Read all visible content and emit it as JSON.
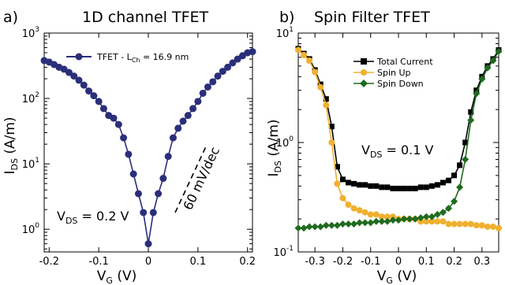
{
  "colors": {
    "tfet_1d": "#2b2f7a",
    "total": "#000000",
    "spin_up": "#f0b030",
    "spin_down": "#1f6b1f"
  },
  "chart_data": [
    {
      "type": "line",
      "panel_label": "a)",
      "title": "1D channel TFET",
      "xlabel_main": "V",
      "xlabel_sub": "G",
      "xlabel_rest": " (V)",
      "ylabel_main": "I",
      "ylabel_sub": "DS",
      "ylabel_rest": " (A/m)",
      "yscale": "log",
      "xlim": [
        -0.21,
        0.21
      ],
      "ylim": [
        0.45,
        1000
      ],
      "x_ticks": [
        -0.2,
        -0.1,
        0,
        0.1,
        0.2
      ],
      "x_tick_labels": [
        "-0.2",
        "-0.1",
        "0",
        "0.1",
        "0.2"
      ],
      "y_tick_exponents": [
        0,
        1,
        2,
        3
      ],
      "series": [
        {
          "name": "TFET - L",
          "name_sub": "Ch",
          "name_rest": " = 16.9 nm",
          "x": [
            -0.21,
            -0.2,
            -0.19,
            -0.18,
            -0.17,
            -0.16,
            -0.15,
            -0.14,
            -0.13,
            -0.12,
            -0.11,
            -0.1,
            -0.09,
            -0.08,
            -0.07,
            -0.06,
            -0.05,
            -0.04,
            -0.03,
            -0.02,
            -0.01,
            0,
            0.01,
            0.02,
            0.03,
            0.04,
            0.05,
            0.06,
            0.07,
            0.08,
            0.09,
            0.1,
            0.11,
            0.12,
            0.13,
            0.14,
            0.15,
            0.16,
            0.17,
            0.18,
            0.19,
            0.2,
            0.21
          ],
          "y": [
            380,
            360,
            330,
            300,
            280,
            250,
            220,
            190,
            160,
            130,
            110,
            90,
            70,
            55,
            50,
            40,
            25,
            14,
            7,
            3.5,
            1.8,
            0.6,
            1.8,
            3.5,
            6,
            13,
            25,
            35,
            45,
            55,
            70,
            90,
            120,
            150,
            180,
            220,
            260,
            300,
            350,
            400,
            450,
            500,
            520
          ]
        }
      ],
      "legend_position": "top-left",
      "annotations": {
        "vds_main": "V",
        "vds_sub": "DS",
        "vds_rest": " = 0.2 V",
        "slope": "60 mV/dec"
      }
    },
    {
      "type": "line",
      "panel_label": "b)",
      "title": "Spin Filter TFET",
      "xlabel_main": "V",
      "xlabel_sub": "G",
      "xlabel_rest": " (V)",
      "ylabel_main": "I",
      "ylabel_sub": "DS",
      "ylabel_rest": " (A/m)",
      "yscale": "log",
      "xlim": [
        -0.36,
        0.36
      ],
      "ylim": [
        0.1,
        10
      ],
      "x_ticks": [
        -0.3,
        -0.2,
        -0.1,
        0,
        0.1,
        0.2,
        0.3
      ],
      "x_tick_labels": [
        "-0.3",
        "-0.2",
        "-0.1",
        "0",
        "0.1",
        "0.2",
        "0.3"
      ],
      "y_tick_exponents": [
        -1,
        0,
        1
      ],
      "series": [
        {
          "name": "Total Current",
          "marker": "square",
          "x": [
            -0.36,
            -0.34,
            -0.32,
            -0.3,
            -0.28,
            -0.26,
            -0.24,
            -0.22,
            -0.2,
            -0.18,
            -0.16,
            -0.14,
            -0.12,
            -0.1,
            -0.08,
            -0.06,
            -0.04,
            -0.02,
            0,
            0.02,
            0.04,
            0.06,
            0.08,
            0.1,
            0.12,
            0.14,
            0.16,
            0.18,
            0.2,
            0.22,
            0.24,
            0.26,
            0.28,
            0.3,
            0.32,
            0.34,
            0.36
          ],
          "y": [
            7.2,
            6.5,
            5.8,
            4.6,
            3.4,
            2.5,
            1.4,
            0.6,
            0.46,
            0.43,
            0.42,
            0.41,
            0.41,
            0.4,
            0.4,
            0.39,
            0.39,
            0.38,
            0.38,
            0.38,
            0.38,
            0.38,
            0.39,
            0.39,
            0.4,
            0.41,
            0.43,
            0.45,
            0.5,
            0.62,
            1.0,
            1.9,
            3.0,
            4.0,
            5.0,
            5.8,
            7.0
          ]
        },
        {
          "name": "Spin Up",
          "marker": "circle",
          "x": [
            -0.36,
            -0.34,
            -0.32,
            -0.3,
            -0.28,
            -0.26,
            -0.24,
            -0.22,
            -0.2,
            -0.18,
            -0.16,
            -0.14,
            -0.12,
            -0.1,
            -0.08,
            -0.06,
            -0.04,
            -0.02,
            0,
            0.02,
            0.04,
            0.06,
            0.08,
            0.1,
            0.12,
            0.14,
            0.16,
            0.18,
            0.2,
            0.22,
            0.24,
            0.26,
            0.28,
            0.3,
            0.32,
            0.34,
            0.36
          ],
          "y": [
            7.0,
            6.3,
            5.6,
            4.4,
            3.2,
            2.2,
            1.0,
            0.42,
            0.31,
            0.27,
            0.25,
            0.24,
            0.23,
            0.22,
            0.22,
            0.21,
            0.21,
            0.21,
            0.2,
            0.2,
            0.2,
            0.2,
            0.19,
            0.19,
            0.19,
            0.19,
            0.19,
            0.18,
            0.18,
            0.18,
            0.18,
            0.18,
            0.175,
            0.175,
            0.17,
            0.17,
            0.165
          ]
        },
        {
          "name": "Spin Down",
          "marker": "diamond",
          "x": [
            -0.36,
            -0.34,
            -0.32,
            -0.3,
            -0.28,
            -0.26,
            -0.24,
            -0.22,
            -0.2,
            -0.18,
            -0.16,
            -0.14,
            -0.12,
            -0.1,
            -0.08,
            -0.06,
            -0.04,
            -0.02,
            0,
            0.02,
            0.04,
            0.06,
            0.08,
            0.1,
            0.12,
            0.14,
            0.16,
            0.18,
            0.2,
            0.22,
            0.24,
            0.26,
            0.28,
            0.3,
            0.32,
            0.34,
            0.36
          ],
          "y": [
            0.165,
            0.165,
            0.17,
            0.17,
            0.17,
            0.175,
            0.175,
            0.175,
            0.18,
            0.18,
            0.18,
            0.185,
            0.185,
            0.185,
            0.19,
            0.19,
            0.19,
            0.195,
            0.195,
            0.2,
            0.2,
            0.2,
            0.205,
            0.21,
            0.21,
            0.22,
            0.23,
            0.25,
            0.29,
            0.39,
            0.7,
            1.6,
            2.8,
            3.8,
            4.8,
            5.6,
            6.8
          ]
        }
      ],
      "legend_position": "top-center",
      "annotations": {
        "vds_main": "V",
        "vds_sub": "DS",
        "vds_rest": " = 0.1 V"
      }
    }
  ]
}
